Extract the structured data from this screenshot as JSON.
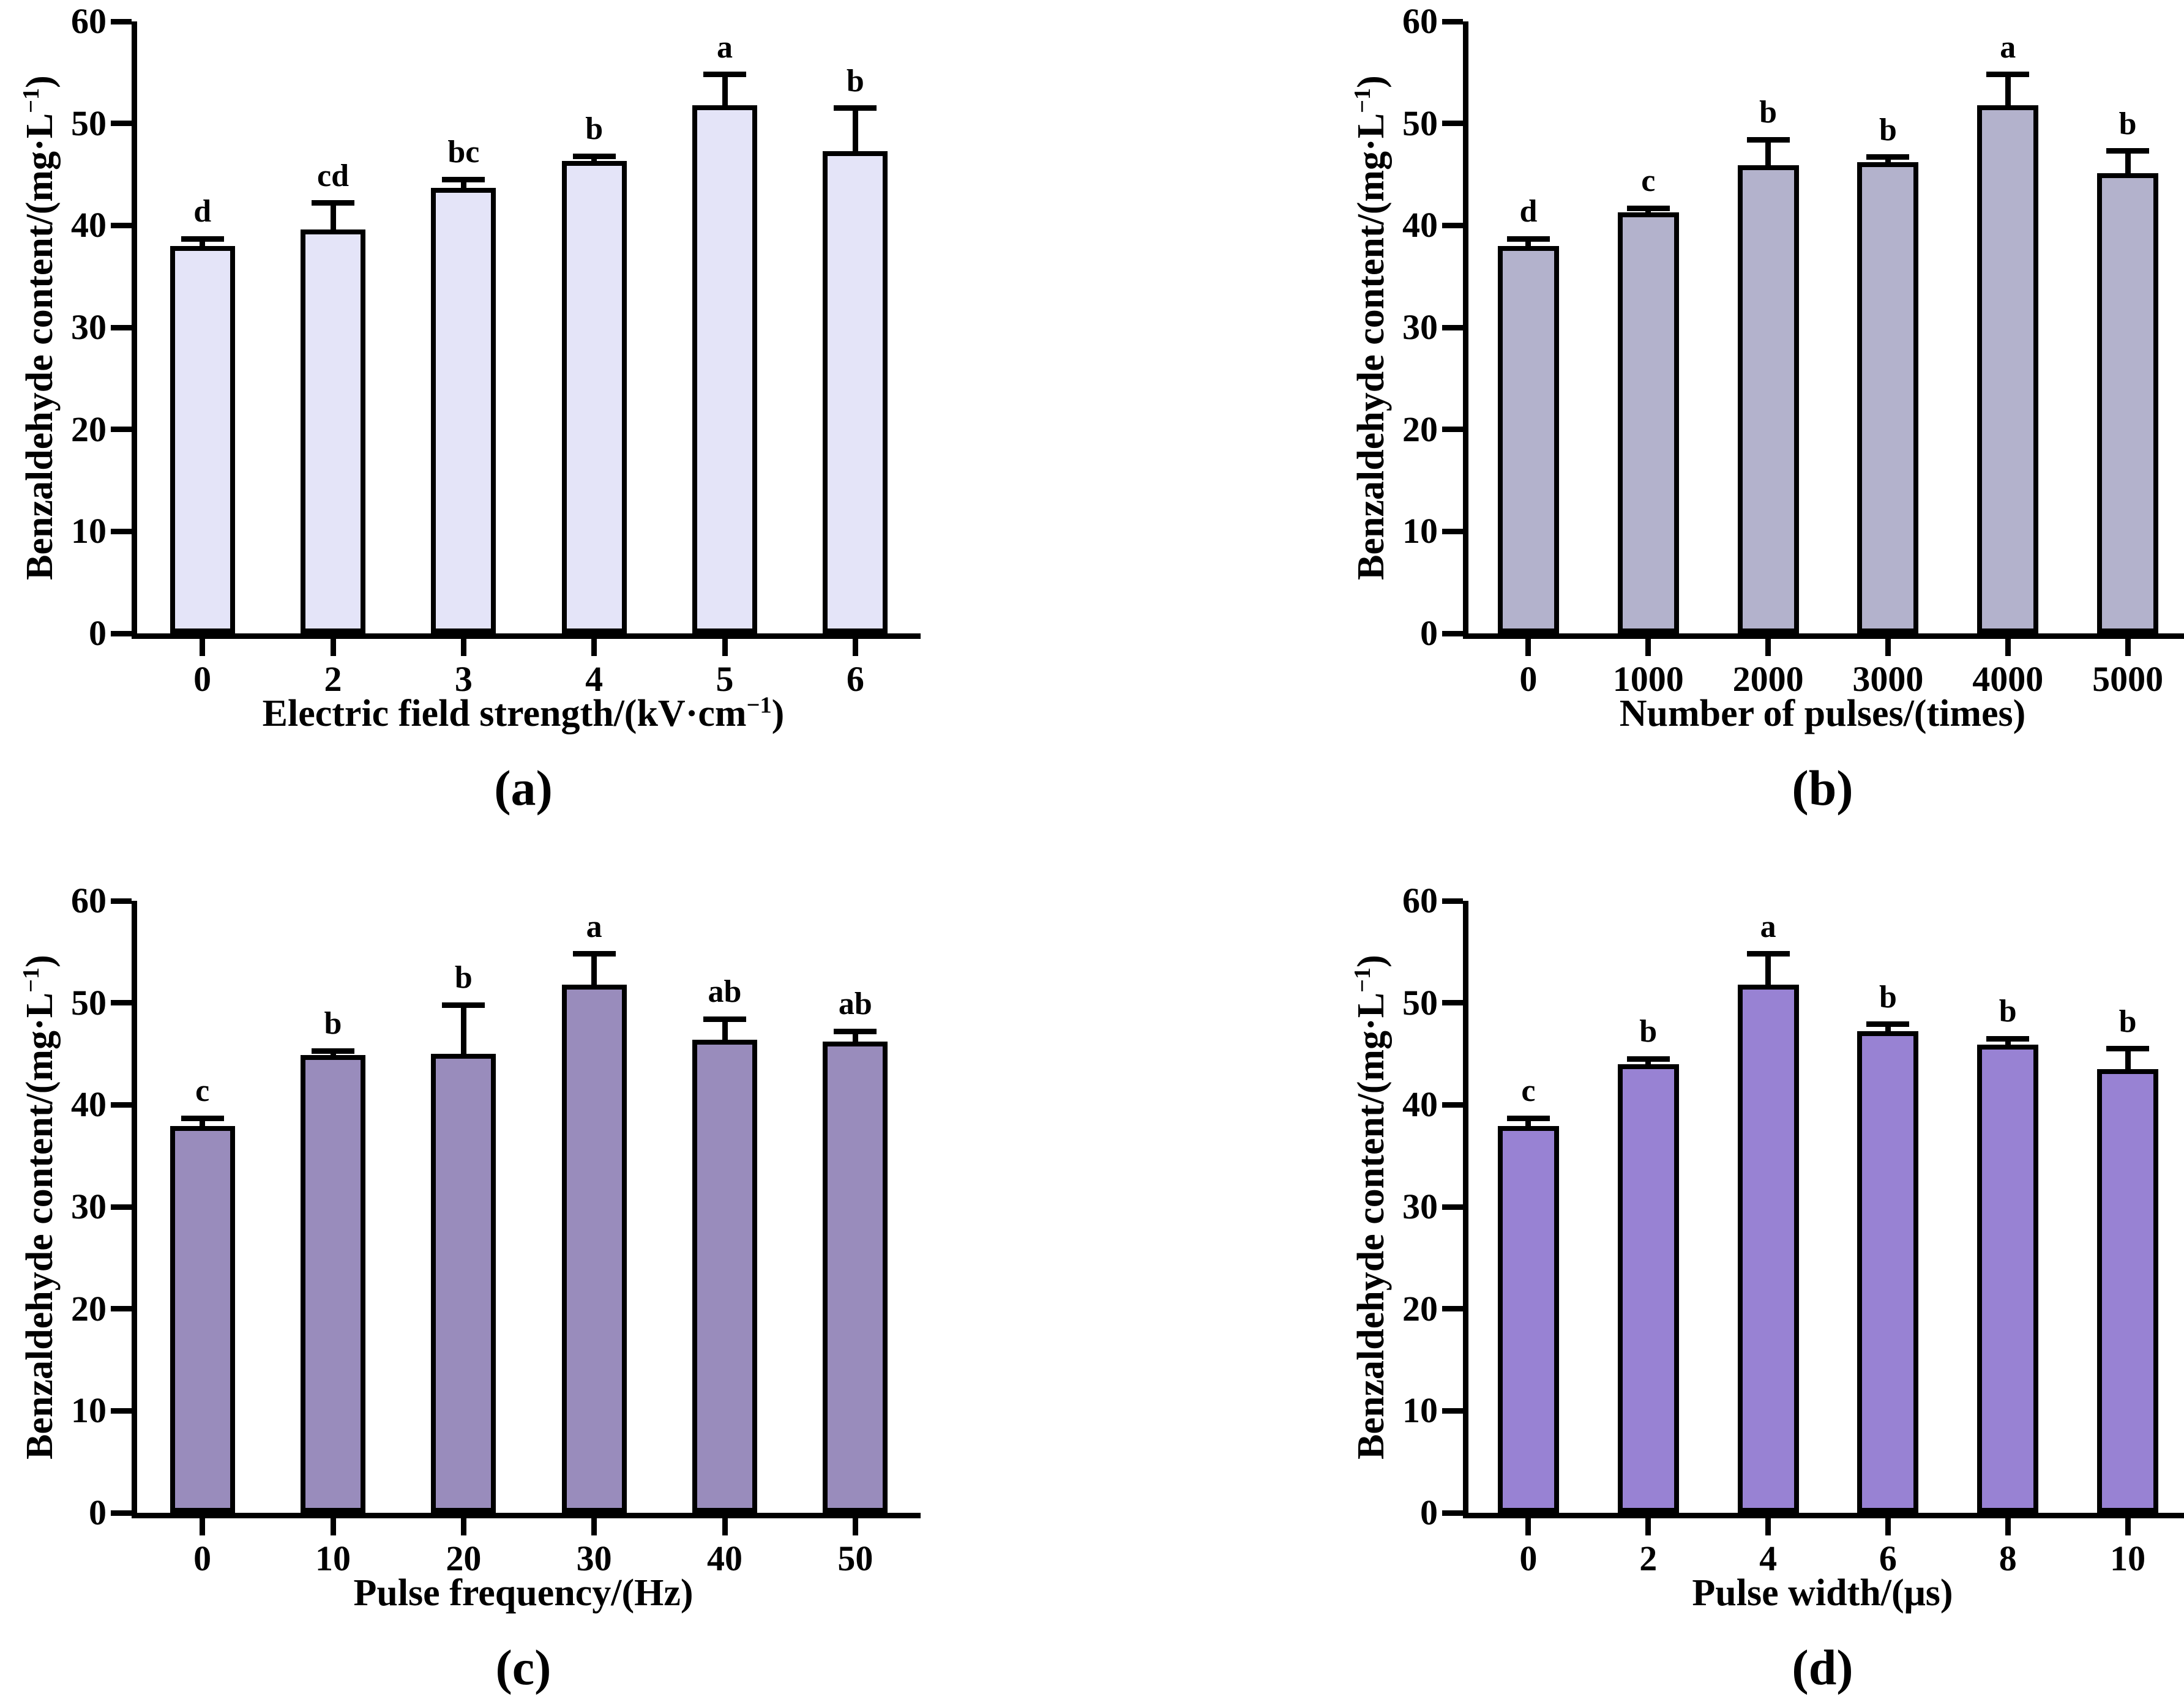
{
  "chart_data": [
    {
      "id": "a",
      "type": "bar",
      "panel_label": "(a)",
      "title": "",
      "ylabel": {
        "pre": "Benzaldehyde content/(mg·L",
        "sup": "−1",
        "post": ")"
      },
      "xlabel": {
        "pre": "Electric field strength/(kV·cm",
        "sup": "−1",
        "post": ")"
      },
      "categories": [
        "0",
        "2",
        "3",
        "4",
        "5",
        "6"
      ],
      "values": [
        38.0,
        39.6,
        43.7,
        46.3,
        51.8,
        47.3
      ],
      "errors": [
        0.7,
        2.6,
        0.8,
        0.5,
        3.0,
        4.2
      ],
      "sig_letters": [
        "d",
        "cd",
        "bc",
        "b",
        "a",
        "b"
      ],
      "bar_color": "#e4e4f8",
      "outline_color": "#000000",
      "ylim": [
        0,
        60
      ],
      "yticks": [
        0,
        10,
        20,
        30,
        40,
        50,
        60
      ],
      "grid": false,
      "legend": false
    },
    {
      "id": "b",
      "type": "bar",
      "panel_label": "(b)",
      "title": "",
      "ylabel": {
        "pre": "Benzaldehyde content/(mg·L",
        "sup": "−1",
        "post": ")"
      },
      "xlabel": {
        "pre": "Number of pulses/(times)",
        "sup": "",
        "post": ""
      },
      "categories": [
        "0",
        "1000",
        "2000",
        "3000",
        "4000",
        "5000"
      ],
      "values": [
        38.0,
        41.3,
        45.9,
        46.2,
        51.8,
        45.1
      ],
      "errors": [
        0.7,
        0.4,
        2.5,
        0.5,
        3.0,
        2.2
      ],
      "sig_letters": [
        "d",
        "c",
        "b",
        "b",
        "a",
        "b"
      ],
      "bar_color": "#b3b2cc",
      "outline_color": "#000000",
      "ylim": [
        0,
        60
      ],
      "yticks": [
        0,
        10,
        20,
        30,
        40,
        50,
        60
      ],
      "grid": false,
      "legend": false
    },
    {
      "id": "c",
      "type": "bar",
      "panel_label": "(c)",
      "title": "",
      "ylabel": {
        "pre": "Benzaldehyde content/(mg·L",
        "sup": "−1",
        "post": ")"
      },
      "xlabel": {
        "pre": "Pulse frequency/(Hz)",
        "sup": "",
        "post": ""
      },
      "categories": [
        "0",
        "10",
        "20",
        "30",
        "40",
        "50"
      ],
      "values": [
        37.9,
        44.9,
        45.0,
        51.8,
        46.4,
        46.2
      ],
      "errors": [
        0.8,
        0.4,
        4.8,
        3.0,
        2.0,
        1.0
      ],
      "sig_letters": [
        "c",
        "b",
        "b",
        "a",
        "ab",
        "ab"
      ],
      "bar_color": "#998cbc",
      "outline_color": "#000000",
      "ylim": [
        0,
        60
      ],
      "yticks": [
        0,
        10,
        20,
        30,
        40,
        50,
        60
      ],
      "grid": false,
      "legend": false
    },
    {
      "id": "d",
      "type": "bar",
      "panel_label": "(d)",
      "title": "",
      "ylabel": {
        "pre": "Benzaldehyde content/(mg·L",
        "sup": "−1",
        "post": ")"
      },
      "xlabel": {
        "pre": "Pulse width/(μs)",
        "sup": "",
        "post": ""
      },
      "categories": [
        "0",
        "2",
        "4",
        "6",
        "8",
        "10"
      ],
      "values": [
        37.9,
        44.0,
        51.8,
        47.2,
        45.9,
        43.5
      ],
      "errors": [
        0.8,
        0.5,
        3.0,
        0.7,
        0.6,
        2.0
      ],
      "sig_letters": [
        "c",
        "b",
        "a",
        "b",
        "b",
        "b"
      ],
      "bar_color": "#9882d3",
      "outline_color": "#000000",
      "ylim": [
        0,
        60
      ],
      "yticks": [
        0,
        10,
        20,
        30,
        40,
        50,
        60
      ],
      "grid": false,
      "legend": false
    }
  ]
}
